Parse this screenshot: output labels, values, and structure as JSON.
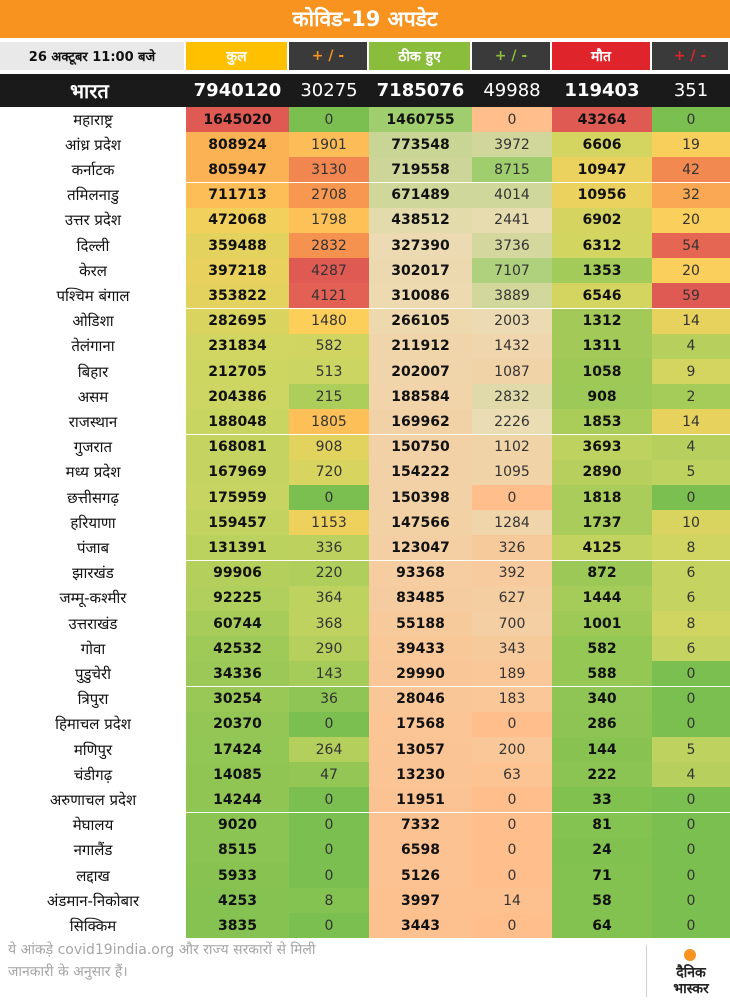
{
  "title": "कोविड-19 अपडेट",
  "header": {
    "date": "26 अक्टूबर 11:00 बजे",
    "total": "कुल",
    "total_delta": "+ / -",
    "recovered": "ठीक हुए",
    "recovered_delta": "+ / -",
    "deaths": "मौत",
    "deaths_delta": "+ / -"
  },
  "colors": {
    "title_bg": "#f7931e",
    "total_header": "#ffc000",
    "recovered_header": "#8bbd3c",
    "deaths_header": "#e0242b",
    "high": "#e06666",
    "low": "#7bbf4f"
  },
  "india": {
    "name": "भारत",
    "total": "7940120",
    "total_delta": "30275",
    "recovered": "7185076",
    "recovered_delta": "49988",
    "deaths": "119403",
    "deaths_delta": "351"
  },
  "states": [
    {
      "name": "महाराष्ट्र",
      "total": "1645020",
      "total_delta": "0",
      "recovered": "1460755",
      "recovered_delta": "0",
      "deaths": "43264",
      "deaths_delta": "0"
    },
    {
      "name": "आंध्र प्रदेश",
      "total": "808924",
      "total_delta": "1901",
      "recovered": "773548",
      "recovered_delta": "3972",
      "deaths": "6606",
      "deaths_delta": "19"
    },
    {
      "name": "कर्नाटक",
      "total": "805947",
      "total_delta": "3130",
      "recovered": "719558",
      "recovered_delta": "8715",
      "deaths": "10947",
      "deaths_delta": "42"
    },
    {
      "name": "तमिलनाडु",
      "total": "711713",
      "total_delta": "2708",
      "recovered": "671489",
      "recovered_delta": "4014",
      "deaths": "10956",
      "deaths_delta": "32"
    },
    {
      "name": "उत्तर प्रदेश",
      "total": "472068",
      "total_delta": "1798",
      "recovered": "438512",
      "recovered_delta": "2441",
      "deaths": "6902",
      "deaths_delta": "20"
    },
    {
      "name": "दिल्ली",
      "total": "359488",
      "total_delta": "2832",
      "recovered": "327390",
      "recovered_delta": "3736",
      "deaths": "6312",
      "deaths_delta": "54"
    },
    {
      "name": "केरल",
      "total": "397218",
      "total_delta": "4287",
      "recovered": "302017",
      "recovered_delta": "7107",
      "deaths": "1353",
      "deaths_delta": "20"
    },
    {
      "name": "पश्चिम बंगाल",
      "total": "353822",
      "total_delta": "4121",
      "recovered": "310086",
      "recovered_delta": "3889",
      "deaths": "6546",
      "deaths_delta": "59"
    },
    {
      "name": "ओडिशा",
      "total": "282695",
      "total_delta": "1480",
      "recovered": "266105",
      "recovered_delta": "2003",
      "deaths": "1312",
      "deaths_delta": "14"
    },
    {
      "name": "तेलंगाना",
      "total": "231834",
      "total_delta": "582",
      "recovered": "211912",
      "recovered_delta": "1432",
      "deaths": "1311",
      "deaths_delta": "4"
    },
    {
      "name": "बिहार",
      "total": "212705",
      "total_delta": "513",
      "recovered": "202007",
      "recovered_delta": "1087",
      "deaths": "1058",
      "deaths_delta": "9"
    },
    {
      "name": "असम",
      "total": "204386",
      "total_delta": "215",
      "recovered": "188584",
      "recovered_delta": "2832",
      "deaths": "908",
      "deaths_delta": "2"
    },
    {
      "name": "राजस्थान",
      "total": "188048",
      "total_delta": "1805",
      "recovered": "169962",
      "recovered_delta": "2226",
      "deaths": "1853",
      "deaths_delta": "14"
    },
    {
      "name": "गुजरात",
      "total": "168081",
      "total_delta": "908",
      "recovered": "150750",
      "recovered_delta": "1102",
      "deaths": "3693",
      "deaths_delta": "4"
    },
    {
      "name": "मध्य प्रदेश",
      "total": "167969",
      "total_delta": "720",
      "recovered": "154222",
      "recovered_delta": "1095",
      "deaths": "2890",
      "deaths_delta": "5"
    },
    {
      "name": "छत्तीसगढ़",
      "total": "175959",
      "total_delta": "0",
      "recovered": "150398",
      "recovered_delta": "0",
      "deaths": "1818",
      "deaths_delta": "0"
    },
    {
      "name": "हरियाणा",
      "total": "159457",
      "total_delta": "1153",
      "recovered": "147566",
      "recovered_delta": "1284",
      "deaths": "1737",
      "deaths_delta": "10"
    },
    {
      "name": "पंजाब",
      "total": "131391",
      "total_delta": "336",
      "recovered": "123047",
      "recovered_delta": "326",
      "deaths": "4125",
      "deaths_delta": "8"
    },
    {
      "name": "झारखंड",
      "total": "99906",
      "total_delta": "220",
      "recovered": "93368",
      "recovered_delta": "392",
      "deaths": "872",
      "deaths_delta": "6"
    },
    {
      "name": "जम्मू-कश्मीर",
      "total": "92225",
      "total_delta": "364",
      "recovered": "83485",
      "recovered_delta": "627",
      "deaths": "1444",
      "deaths_delta": "6"
    },
    {
      "name": "उत्तराखंड",
      "total": "60744",
      "total_delta": "368",
      "recovered": "55188",
      "recovered_delta": "700",
      "deaths": "1001",
      "deaths_delta": "8"
    },
    {
      "name": "गोवा",
      "total": "42532",
      "total_delta": "290",
      "recovered": "39433",
      "recovered_delta": "343",
      "deaths": "582",
      "deaths_delta": "6"
    },
    {
      "name": "पुडुचेरी",
      "total": "34336",
      "total_delta": "143",
      "recovered": "29990",
      "recovered_delta": "189",
      "deaths": "588",
      "deaths_delta": "0"
    },
    {
      "name": "त्रिपुरा",
      "total": "30254",
      "total_delta": "36",
      "recovered": "28046",
      "recovered_delta": "183",
      "deaths": "340",
      "deaths_delta": "0"
    },
    {
      "name": "हिमाचल प्रदेश",
      "total": "20370",
      "total_delta": "0",
      "recovered": "17568",
      "recovered_delta": "0",
      "deaths": "286",
      "deaths_delta": "0"
    },
    {
      "name": "मणिपुर",
      "total": "17424",
      "total_delta": "264",
      "recovered": "13057",
      "recovered_delta": "200",
      "deaths": "144",
      "deaths_delta": "5"
    },
    {
      "name": "चंडीगढ़",
      "total": "14085",
      "total_delta": "47",
      "recovered": "13230",
      "recovered_delta": "63",
      "deaths": "222",
      "deaths_delta": "4"
    },
    {
      "name": "अरुणाचल प्रदेश",
      "total": "14244",
      "total_delta": "0",
      "recovered": "11951",
      "recovered_delta": "0",
      "deaths": "33",
      "deaths_delta": "0"
    },
    {
      "name": "मेघालय",
      "total": "9020",
      "total_delta": "0",
      "recovered": "7332",
      "recovered_delta": "0",
      "deaths": "81",
      "deaths_delta": "0"
    },
    {
      "name": "नगालैंड",
      "total": "8515",
      "total_delta": "0",
      "recovered": "6598",
      "recovered_delta": "0",
      "deaths": "24",
      "deaths_delta": "0"
    },
    {
      "name": "लद्दाख",
      "total": "5933",
      "total_delta": "0",
      "recovered": "5126",
      "recovered_delta": "0",
      "deaths": "71",
      "deaths_delta": "0"
    },
    {
      "name": "अंडमान-निकोबार",
      "total": "4253",
      "total_delta": "8",
      "recovered": "3997",
      "recovered_delta": "14",
      "deaths": "58",
      "deaths_delta": "0"
    },
    {
      "name": "सिक्किम",
      "total": "3835",
      "total_delta": "0",
      "recovered": "3443",
      "recovered_delta": "0",
      "deaths": "64",
      "deaths_delta": "0"
    }
  ],
  "footnote": "ये आंकड़े covid19india.org और राज्य सरकारों से मिली जानकारी के अनुसार हैं।",
  "logo": {
    "line1": "दैनिक",
    "line2": "भास्कर"
  }
}
